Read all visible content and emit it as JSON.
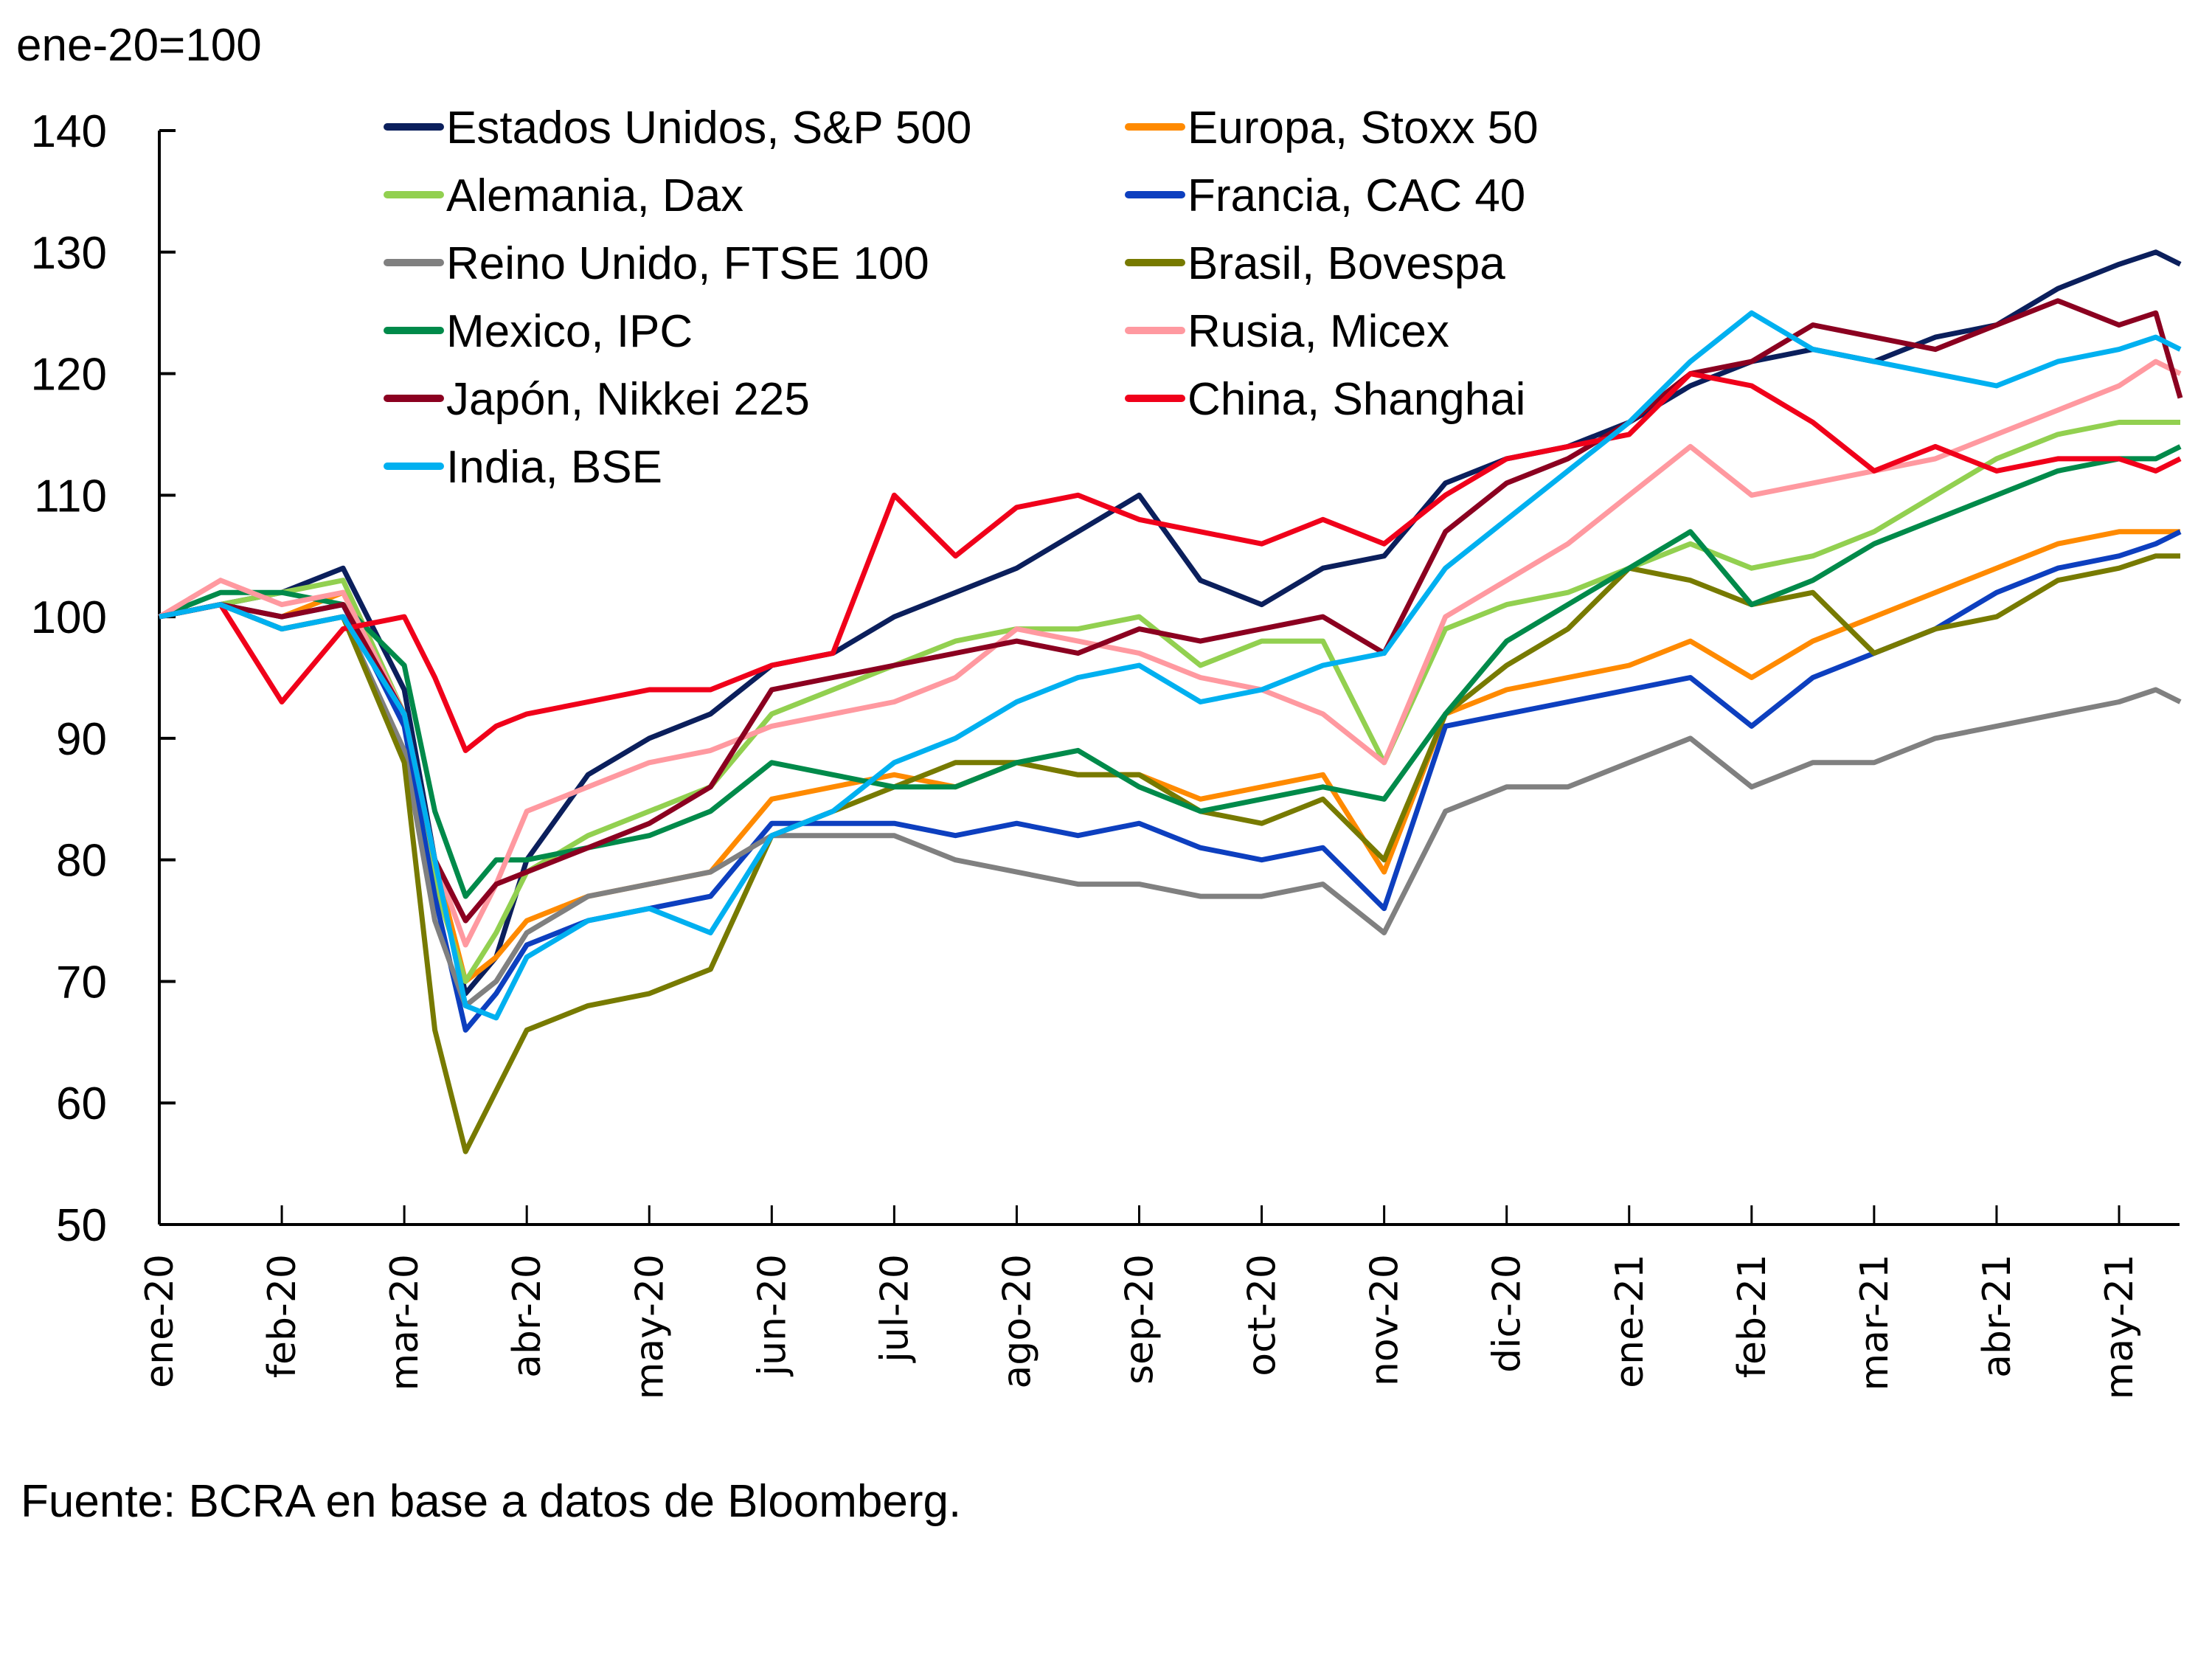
{
  "chart_data": {
    "type": "line",
    "title": "",
    "unit_label": "ene-20=100",
    "xlabel": "",
    "ylabel": "",
    "ylim": [
      50,
      140
    ],
    "yticks": [
      50,
      60,
      70,
      80,
      90,
      100,
      110,
      120,
      130,
      140
    ],
    "xlim": [
      0,
      16.5
    ],
    "x_unit": "months since ene-20",
    "xtick_positions": [
      0,
      1,
      2,
      3,
      4,
      5,
      6,
      7,
      8,
      9,
      10,
      11,
      12,
      13,
      14,
      15,
      16
    ],
    "xtick_labels": [
      "ene-20",
      "feb-20",
      "mar-20",
      "abr-20",
      "may-20",
      "jun-20",
      "jul-20",
      "ago-20",
      "sep-20",
      "oct-20",
      "nov-20",
      "dic-20",
      "ene-21",
      "feb-21",
      "mar-21",
      "abr-21",
      "may-21"
    ],
    "grid": false,
    "legend_position": "top-center, two columns",
    "x": [
      0,
      0.5,
      1,
      1.5,
      2,
      2.25,
      2.5,
      2.75,
      3,
      3.5,
      4,
      4.5,
      5,
      5.5,
      6,
      6.5,
      7,
      7.5,
      8,
      8.5,
      9,
      9.5,
      10,
      10.5,
      11,
      11.5,
      12,
      12.5,
      13,
      13.5,
      14,
      14.5,
      15,
      15.5,
      16,
      16.3,
      16.5
    ],
    "series": [
      {
        "name": "Estados Unidos, S&P 500",
        "color": "#0b1f5c",
        "values": [
          100,
          101,
          102,
          104,
          94,
          80,
          69,
          72,
          80,
          87,
          90,
          92,
          96,
          97,
          100,
          102,
          104,
          107,
          110,
          103,
          101,
          104,
          105,
          111,
          113,
          114,
          116,
          119,
          121,
          122,
          121,
          123,
          124,
          127,
          129,
          130,
          129
        ]
      },
      {
        "name": "Europa, Stoxx 50",
        "color": "#ff8a00",
        "values": [
          100,
          101,
          100,
          102,
          92,
          80,
          70,
          72,
          75,
          77,
          78,
          79,
          85,
          86,
          87,
          86,
          88,
          87,
          87,
          85,
          86,
          87,
          79,
          92,
          94,
          95,
          96,
          98,
          95,
          98,
          100,
          102,
          104,
          106,
          107,
          107,
          107
        ]
      },
      {
        "name": "Alemania, Dax",
        "color": "#92d050",
        "values": [
          100,
          101,
          102,
          103,
          92,
          78,
          70,
          74,
          79,
          82,
          84,
          86,
          92,
          94,
          96,
          98,
          99,
          99,
          100,
          96,
          98,
          98,
          88,
          99,
          101,
          102,
          104,
          106,
          104,
          105,
          107,
          110,
          113,
          115,
          116,
          116,
          116
        ]
      },
      {
        "name": "Francia, CAC 40",
        "color": "#0d3fbf",
        "values": [
          100,
          101,
          100,
          101,
          91,
          77,
          66,
          69,
          73,
          75,
          76,
          77,
          83,
          83,
          83,
          82,
          83,
          82,
          83,
          81,
          80,
          81,
          76,
          91,
          92,
          93,
          94,
          95,
          91,
          95,
          97,
          99,
          102,
          104,
          105,
          106,
          107
        ]
      },
      {
        "name": "Reino Unido, FTSE 100",
        "color": "#808080",
        "values": [
          100,
          101,
          99,
          100,
          89,
          75,
          68,
          70,
          74,
          77,
          78,
          79,
          82,
          82,
          82,
          80,
          79,
          78,
          78,
          77,
          77,
          78,
          74,
          84,
          86,
          86,
          88,
          90,
          86,
          88,
          88,
          90,
          91,
          92,
          93,
          94,
          93
        ]
      },
      {
        "name": "Brasil, Bovespa",
        "color": "#777a00",
        "values": [
          100,
          101,
          99,
          100,
          88,
          66,
          56,
          61,
          66,
          68,
          69,
          71,
          82,
          84,
          86,
          88,
          88,
          87,
          87,
          84,
          83,
          85,
          80,
          92,
          96,
          99,
          104,
          103,
          101,
          102,
          97,
          99,
          100,
          103,
          104,
          105,
          105
        ]
      },
      {
        "name": "Mexico, IPC",
        "color": "#008a4a",
        "values": [
          100,
          102,
          102,
          101,
          96,
          84,
          77,
          80,
          80,
          81,
          82,
          84,
          88,
          87,
          86,
          86,
          88,
          89,
          86,
          84,
          85,
          86,
          85,
          92,
          98,
          101,
          104,
          107,
          101,
          103,
          106,
          108,
          110,
          112,
          113,
          113,
          114
        ]
      },
      {
        "name": "Rusia, Micex",
        "color": "#ff99a0",
        "values": [
          100,
          103,
          101,
          102,
          92,
          80,
          73,
          78,
          84,
          86,
          88,
          89,
          91,
          92,
          93,
          95,
          99,
          98,
          97,
          95,
          94,
          92,
          88,
          100,
          103,
          106,
          110,
          114,
          110,
          111,
          112,
          113,
          115,
          117,
          119,
          121,
          120
        ]
      },
      {
        "name": "Japón, Nikkei 225",
        "color": "#8b0020",
        "values": [
          100,
          101,
          100,
          101,
          92,
          80,
          75,
          78,
          79,
          81,
          83,
          86,
          94,
          95,
          96,
          97,
          98,
          97,
          99,
          98,
          99,
          100,
          97,
          107,
          111,
          113,
          116,
          120,
          121,
          124,
          123,
          122,
          124,
          126,
          124,
          125,
          118
        ]
      },
      {
        "name": "China, Shanghai",
        "color": "#f0001a",
        "values": [
          100,
          101,
          93,
          99,
          100,
          95,
          89,
          91,
          92,
          93,
          94,
          94,
          96,
          97,
          110,
          105,
          109,
          110,
          108,
          107,
          106,
          108,
          106,
          110,
          113,
          114,
          115,
          120,
          119,
          116,
          112,
          114,
          112,
          113,
          113,
          112,
          113
        ]
      },
      {
        "name": "India, BSE",
        "color": "#00b0f0",
        "values": [
          100,
          101,
          99,
          100,
          92,
          80,
          68,
          67,
          72,
          75,
          76,
          74,
          82,
          84,
          88,
          90,
          93,
          95,
          96,
          93,
          94,
          96,
          97,
          104,
          108,
          112,
          116,
          121,
          125,
          122,
          121,
          120,
          119,
          121,
          122,
          123,
          122
        ]
      }
    ]
  },
  "footer": {
    "source": "Fuente: BCRA en base a datos de Bloomberg."
  }
}
